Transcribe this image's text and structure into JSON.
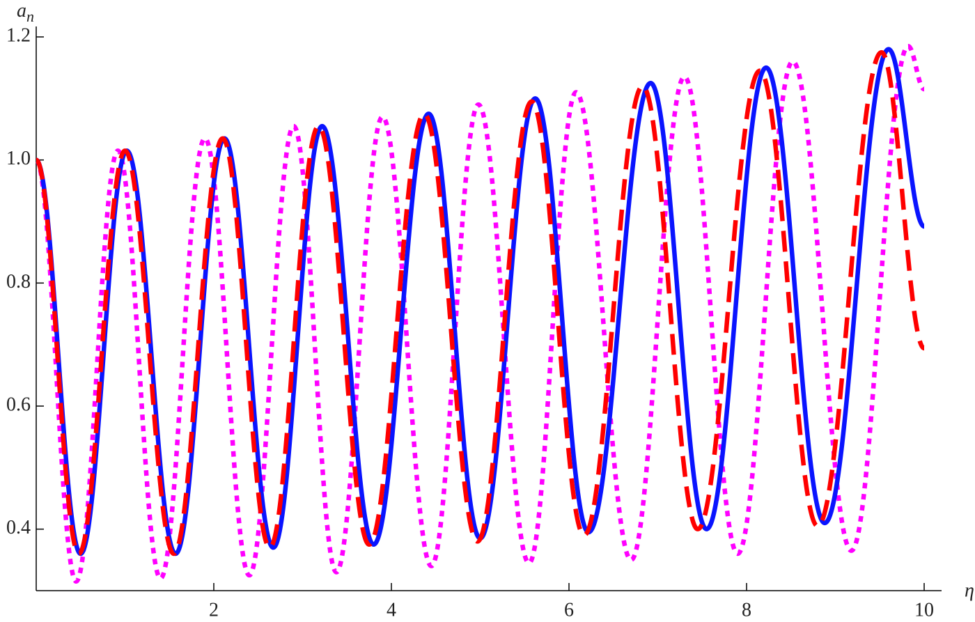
{
  "chart_data": {
    "type": "line",
    "xlabel": "η",
    "ylabel": "a",
    "ylabel_subscript": "n",
    "xlim": [
      0,
      10
    ],
    "ylim": [
      0.3,
      1.2
    ],
    "xticks": [
      2,
      4,
      6,
      8,
      10
    ],
    "yticks": [
      0.4,
      0.6,
      0.8,
      {
        "value": 1,
        "label": "1.0"
      },
      1.2
    ],
    "series": [
      {
        "name": "dotted",
        "color": "#ff00ff",
        "style": "dotted",
        "x": [
          0,
          0.45,
          0.92,
          1.4,
          1.9,
          2.4,
          2.9,
          3.38,
          3.9,
          4.45,
          4.98,
          5.55,
          6.08,
          6.7,
          7.3,
          7.9,
          8.52,
          9.18,
          9.82,
          10
        ],
        "values": [
          1.0,
          0.315,
          1.015,
          0.32,
          1.035,
          0.325,
          1.055,
          0.33,
          1.07,
          0.34,
          1.09,
          0.345,
          1.11,
          0.35,
          1.135,
          0.36,
          1.16,
          0.365,
          1.185,
          1.115
        ]
      },
      {
        "name": "solid",
        "color": "#0a14ff",
        "style": "solid",
        "x": [
          0,
          0.5,
          1.02,
          1.57,
          2.12,
          2.67,
          3.22,
          3.8,
          4.42,
          5.0,
          5.62,
          6.22,
          6.92,
          7.55,
          8.22,
          8.88,
          9.6,
          10
        ],
        "values": [
          1.0,
          0.36,
          1.015,
          0.36,
          1.035,
          0.37,
          1.055,
          0.375,
          1.075,
          0.385,
          1.1,
          0.395,
          1.125,
          0.4,
          1.15,
          0.41,
          1.18,
          0.892
        ]
      },
      {
        "name": "dashed",
        "color": "#ff0000",
        "style": "dashed",
        "x": [
          0,
          0.48,
          1.0,
          1.55,
          2.1,
          2.63,
          3.18,
          3.75,
          4.37,
          4.97,
          5.58,
          6.17,
          6.83,
          7.45,
          8.15,
          8.8,
          9.52,
          10
        ],
        "values": [
          1.0,
          0.36,
          1.015,
          0.36,
          1.035,
          0.37,
          1.055,
          0.375,
          1.075,
          0.38,
          1.095,
          0.39,
          1.12,
          0.4,
          1.145,
          0.405,
          1.175,
          0.694
        ]
      }
    ]
  }
}
